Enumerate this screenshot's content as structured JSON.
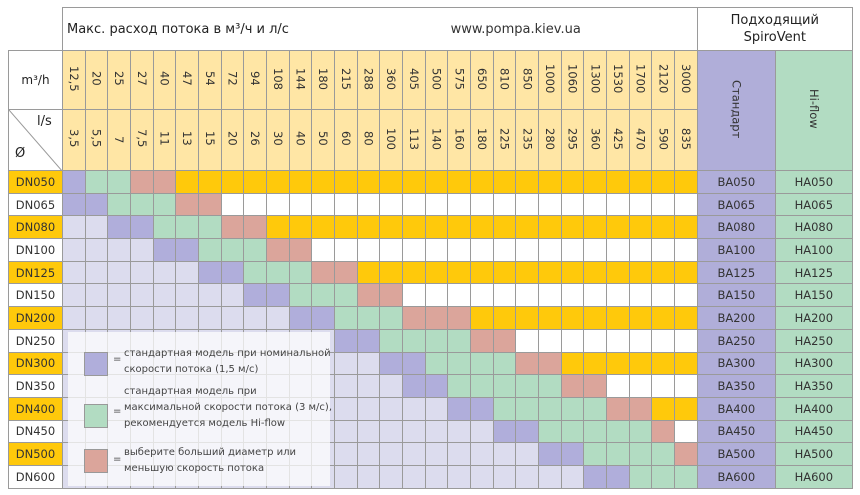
{
  "header": {
    "title": "Макс. расход потока в м³/ч и л/с",
    "url": "www.pompa.kiev.ua",
    "spirovent": "Подходящий SpiroVent",
    "unit_m3h": "m³/h",
    "unit_ls": "l/s",
    "diameter_symbol": "Ø",
    "standard": "Стандарт",
    "hiflow": "Hi-flow"
  },
  "m3h": [
    "12,5",
    "20",
    "25",
    "27",
    "40",
    "47",
    "54",
    "72",
    "94",
    "108",
    "144",
    "180",
    "215",
    "288",
    "360",
    "405",
    "500",
    "575",
    "650",
    "810",
    "850",
    "1000",
    "1060",
    "1300",
    "1530",
    "1700",
    "2120",
    "3000"
  ],
  "ls": [
    "3,5",
    "5,5",
    "7",
    "7,5",
    "11",
    "13",
    "15",
    "20",
    "26",
    "30",
    "40",
    "50",
    "60",
    "80",
    "100",
    "113",
    "140",
    "160",
    "180",
    "225",
    "235",
    "280",
    "295",
    "360",
    "425",
    "470",
    "590",
    "835"
  ],
  "rows": [
    {
      "dn": "DN050",
      "ba": "BA050",
      "ha": "HA050",
      "cells": "PGGRR"
    },
    {
      "dn": "DN065",
      "ba": "BA065",
      "ha": "HA065",
      "cells": "PPGGGRR"
    },
    {
      "dn": "DN080",
      "ba": "BA080",
      "ha": "HA080",
      "cells": "LLPPGGGRR"
    },
    {
      "dn": "DN100",
      "ba": "BA100",
      "ha": "HA100",
      "cells": "LLLLPPGGGRR"
    },
    {
      "dn": "DN125",
      "ba": "BA125",
      "ha": "HA125",
      "cells": "LLLLLLPPGGGRR"
    },
    {
      "dn": "DN150",
      "ba": "BA150",
      "ha": "HA150",
      "cells": "LLLLLLLLPPGGGRR"
    },
    {
      "dn": "DN200",
      "ba": "BA200",
      "ha": "HA200",
      "cells": "LLLLLLLLLLPPGGGRRR"
    },
    {
      "dn": "DN250",
      "ba": "BA250",
      "ha": "HA250",
      "cells": "LLLLLLLLLLLLPPGGGGRR"
    },
    {
      "dn": "DN300",
      "ba": "BA300",
      "ha": "HA300",
      "cells": "LLLLLLLLLLLLLLPPGGGGRR"
    },
    {
      "dn": "DN350",
      "ba": "BA350",
      "ha": "HA350",
      "cells": "LLLLLLLLLLLLLLLPPGGGGGRR"
    },
    {
      "dn": "DN400",
      "ba": "BA400",
      "ha": "HA400",
      "cells": "LLLLLLLLLLLLLLLLLPPGGGGGRR"
    },
    {
      "dn": "DN450",
      "ba": "BA450",
      "ha": "HA450",
      "cells": "LLLLLLLLLLLLLLLLLLLPPGGGGGR"
    },
    {
      "dn": "DN500",
      "ba": "BA500",
      "ha": "HA500",
      "cells": "LLLLLLLLLLLLLLLLLLLLLPPGGGGR"
    },
    {
      "dn": "DN600",
      "ba": "BA600",
      "ha": "HA600",
      "cells": "LLLLLLLLLLLLLLLLLLLLLLLPPGGG"
    }
  ],
  "legend": {
    "eq": "=",
    "items": [
      {
        "color": "#b0aedb",
        "text": "стандартная модель при номинальной скорости потока (1,5 м/с)"
      },
      {
        "color": "#b2dcc2",
        "text": "стандартная модель при максимальной скорости потока (3 м/с), рекомендуется модель Hi-flow"
      },
      {
        "color": "#dba59b",
        "text": "выберите больший диаметр или меньшую скорость потока"
      }
    ]
  },
  "colors": {
    "stripe": "#ffc90b",
    "header": "#ffe6a5",
    "light": "#dcdcee",
    "standard": "#b0aedb",
    "hiflow": "#b2dcc2",
    "warn": "#dba59b"
  }
}
